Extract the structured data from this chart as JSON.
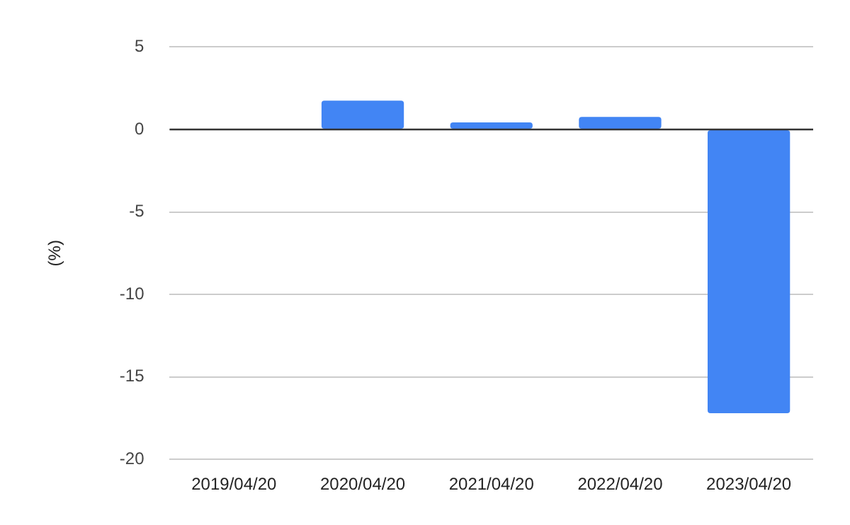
{
  "chart_data": {
    "type": "bar",
    "ylabel": "(%)",
    "categories": [
      "2019/04/20",
      "2020/04/20",
      "2021/04/20",
      "2022/04/20",
      "2023/04/20"
    ],
    "values": [
      0,
      1.75,
      0.43,
      0.76,
      -17.2
    ],
    "color": "#4285f4",
    "ylim": [
      -20,
      5
    ],
    "yticks": [
      -20,
      -15,
      -10,
      -5,
      0,
      5
    ],
    "grid": "y"
  }
}
